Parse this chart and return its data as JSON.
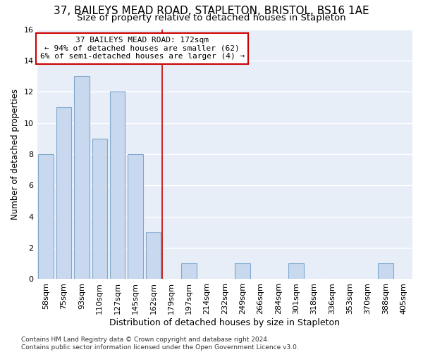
{
  "title": "37, BAILEYS MEAD ROAD, STAPLETON, BRISTOL, BS16 1AE",
  "subtitle": "Size of property relative to detached houses in Stapleton",
  "xlabel": "Distribution of detached houses by size in Stapleton",
  "ylabel": "Number of detached properties",
  "categories": [
    "58sqm",
    "75sqm",
    "93sqm",
    "110sqm",
    "127sqm",
    "145sqm",
    "162sqm",
    "179sqm",
    "197sqm",
    "214sqm",
    "232sqm",
    "249sqm",
    "266sqm",
    "284sqm",
    "301sqm",
    "318sqm",
    "336sqm",
    "353sqm",
    "370sqm",
    "388sqm",
    "405sqm"
  ],
  "values": [
    8,
    11,
    13,
    9,
    12,
    8,
    3,
    0,
    1,
    0,
    0,
    1,
    0,
    0,
    1,
    0,
    0,
    0,
    0,
    1,
    0
  ],
  "bar_color": "#c8d8ee",
  "bar_edgecolor": "#7fa8cc",
  "vline_x": 6.5,
  "vline_color": "#cc0000",
  "annotation_text": "37 BAILEYS MEAD ROAD: 172sqm\n← 94% of detached houses are smaller (62)\n6% of semi-detached houses are larger (4) →",
  "annotation_box_color": "#cc0000",
  "ylim": [
    0,
    16
  ],
  "yticks": [
    0,
    2,
    4,
    6,
    8,
    10,
    12,
    14,
    16
  ],
  "plot_bg_color": "#e8eef8",
  "fig_bg_color": "#ffffff",
  "grid_color": "#ffffff",
  "footer": "Contains HM Land Registry data © Crown copyright and database right 2024.\nContains public sector information licensed under the Open Government Licence v3.0.",
  "title_fontsize": 11,
  "subtitle_fontsize": 9.5,
  "xlabel_fontsize": 9,
  "ylabel_fontsize": 8.5,
  "tick_fontsize": 8,
  "annotation_fontsize": 8,
  "footer_fontsize": 6.5
}
